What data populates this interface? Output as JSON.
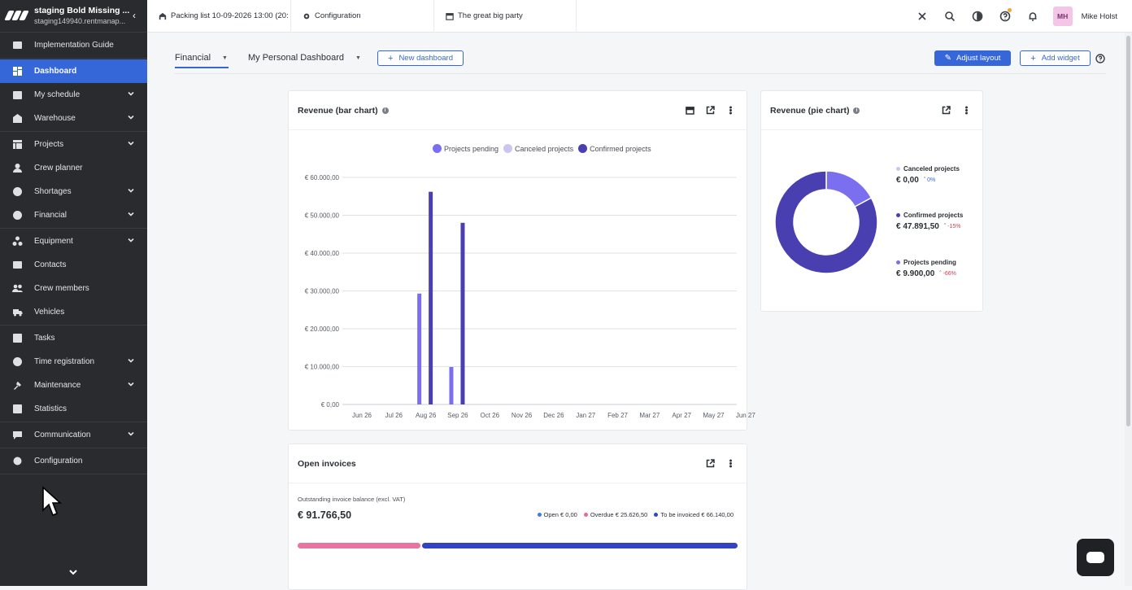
{
  "brand": {
    "title": "staging Bold Missing ...",
    "subtitle": "staging149940.rentmanap..."
  },
  "sidebar": {
    "groups": [
      [
        {
          "label": "Implementation Guide",
          "icon": "guide-icon",
          "chevron": false
        }
      ],
      [
        {
          "label": "Dashboard",
          "icon": "dashboard-icon",
          "chevron": false,
          "active": true
        },
        {
          "label": "My schedule",
          "icon": "schedule-icon",
          "chevron": true
        },
        {
          "label": "Warehouse",
          "icon": "warehouse-icon",
          "chevron": true
        }
      ],
      [
        {
          "label": "Projects",
          "icon": "projects-icon",
          "chevron": true
        },
        {
          "label": "Crew planner",
          "icon": "crew-planner-icon",
          "chevron": false
        },
        {
          "label": "Shortages",
          "icon": "shortages-icon",
          "chevron": true
        },
        {
          "label": "Financial",
          "icon": "financial-icon",
          "chevron": true
        }
      ],
      [
        {
          "label": "Equipment",
          "icon": "equipment-icon",
          "chevron": true
        },
        {
          "label": "Contacts",
          "icon": "contacts-icon",
          "chevron": false
        },
        {
          "label": "Crew members",
          "icon": "crew-members-icon",
          "chevron": false
        },
        {
          "label": "Vehicles",
          "icon": "vehicles-icon",
          "chevron": false
        }
      ],
      [
        {
          "label": "Tasks",
          "icon": "tasks-icon",
          "chevron": false
        },
        {
          "label": "Time registration",
          "icon": "time-icon",
          "chevron": true
        },
        {
          "label": "Maintenance",
          "icon": "maintenance-icon",
          "chevron": true
        },
        {
          "label": "Statistics",
          "icon": "statistics-icon",
          "chevron": false
        }
      ],
      [
        {
          "label": "Communication",
          "icon": "communication-icon",
          "chevron": true
        }
      ],
      [
        {
          "label": "Configuration",
          "icon": "gear-icon",
          "chevron": false
        }
      ]
    ]
  },
  "topbar": {
    "tabs": [
      {
        "label": "Packing list 10-09-2026 13:00 (20:",
        "icon": "warehouse-icon"
      },
      {
        "label": "Configuration",
        "icon": "gear-icon"
      },
      {
        "label": "The great big party",
        "icon": "calendar-icon"
      }
    ],
    "user_initials": "MH",
    "user_name": "Mike Holst"
  },
  "dashboard": {
    "tabs": [
      {
        "label": "Financial"
      },
      {
        "label": "My Personal Dashboard"
      }
    ],
    "new_dashboard_label": "New dashboard",
    "adjust_layout_label": "Adjust layout",
    "add_widget_label": "Add widget"
  },
  "bar_card": {
    "title": "Revenue (bar chart)"
  },
  "pie_card": {
    "title": "Revenue (pie chart)"
  },
  "invoice_card": {
    "title": "Open invoices",
    "subtitle": "Outstanding invoice balance (excl. VAT)",
    "amount": "€ 91.766,50",
    "legend": [
      {
        "label": "Open",
        "value": "€ 0,00",
        "color": "#3f7ee0"
      },
      {
        "label": "Overdue",
        "value": "€ 25.626,50",
        "color": "#e06c9f"
      },
      {
        "label": "To be invoiced",
        "value": "€ 66.140,00",
        "color": "#3347bb"
      }
    ],
    "bar": [
      {
        "value": 25626.5,
        "color": "#e874a2"
      },
      {
        "value": 66140,
        "color": "#3244c4"
      }
    ]
  },
  "chart_data": [
    {
      "type": "bar",
      "title": "Revenue (bar chart)",
      "categories": [
        "Jun 26",
        "Jul 26",
        "Aug 26",
        "Sep 26",
        "Oct 26",
        "Nov 26",
        "Dec 26",
        "Jan 27",
        "Feb 27",
        "Mar 27",
        "Apr 27",
        "May 27",
        "Jun 27"
      ],
      "series": [
        {
          "name": "Projects pending",
          "color": "#7b6ff0",
          "values": [
            0,
            0,
            29300,
            9900,
            0,
            0,
            0,
            0,
            0,
            0,
            0,
            0,
            0
          ]
        },
        {
          "name": "Canceled projects",
          "color": "#c9c7ee",
          "values": [
            0,
            0,
            0,
            0,
            0,
            0,
            0,
            0,
            0,
            0,
            0,
            0,
            0
          ]
        },
        {
          "name": "Confirmed projects",
          "color": "#4a3fb0",
          "values": [
            0,
            0,
            56200,
            48000,
            0,
            0,
            0,
            0,
            0,
            0,
            0,
            0,
            0
          ]
        }
      ],
      "y_ticks": [
        "€ 0,00",
        "€ 10.000,00",
        "€ 20.000,00",
        "€ 30.000,00",
        "€ 40.000,00",
        "€ 50.000,00",
        "€ 60.000,00"
      ],
      "ylim": [
        0,
        60000
      ],
      "legend": "top-center",
      "grid": true
    },
    {
      "type": "pie",
      "title": "Revenue (pie chart)",
      "slices": [
        {
          "name": "Canceled projects",
          "value": 0,
          "display": "€ 0,00",
          "change": "0%",
          "color": "#c9c7ee",
          "change_color": "#3567d8"
        },
        {
          "name": "Confirmed projects",
          "value": 47891.5,
          "display": "€ 47.891,50",
          "change": "-15%",
          "color": "#4a3fb0",
          "change_color": "#d13a4e"
        },
        {
          "name": "Projects pending",
          "value": 9900,
          "display": "€ 9.900,00",
          "change": "-66%",
          "color": "#7b6ff0",
          "change_color": "#d13a4e"
        }
      ],
      "donut": true,
      "legend": "right"
    }
  ]
}
